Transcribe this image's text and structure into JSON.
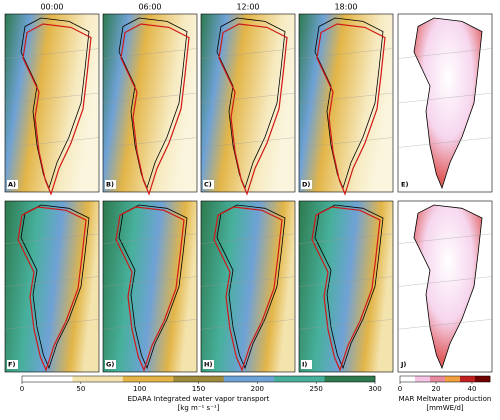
{
  "columns": [
    "00:00",
    "06:00",
    "12:00",
    "18:00"
  ],
  "panels": [
    "A)",
    "B)",
    "C)",
    "D)",
    "E)",
    "F)",
    "G)",
    "H)",
    "I)",
    "J)"
  ],
  "colorbars": [
    {
      "label": "EDARA Integrated water vapor transport",
      "unit": "[kg m⁻¹ s⁻¹]",
      "lim": [
        0,
        300
      ],
      "ticks": [
        0,
        50,
        100,
        150,
        200,
        250,
        300
      ],
      "colors": [
        "#ffffff",
        "#f3e4ae",
        "#e3b548",
        "#a08a3c",
        "#6fa2d6",
        "#47b09c",
        "#2e7a4e"
      ]
    },
    {
      "label": "MAR Meltwater production",
      "unit": "[mmWE/d]",
      "lim": [
        0,
        50
      ],
      "ticks": [
        0,
        20,
        40
      ],
      "colors": [
        "#ffffff",
        "#f3c4e4",
        "#e68aa0",
        "#f0a040",
        "#c02020",
        "#700000"
      ]
    }
  ]
}
